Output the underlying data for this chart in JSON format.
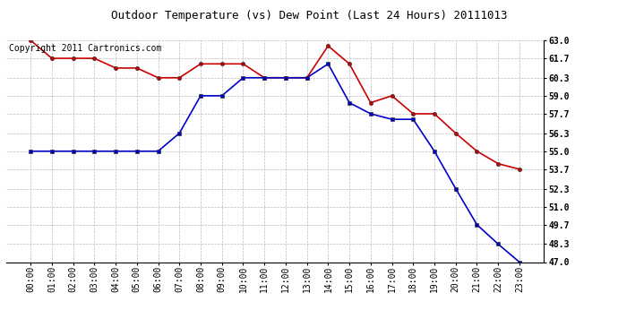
{
  "title": "Outdoor Temperature (vs) Dew Point (Last 24 Hours) 20111013",
  "copyright_text": "Copyright 2011 Cartronics.com",
  "x_labels": [
    "00:00",
    "01:00",
    "02:00",
    "03:00",
    "04:00",
    "05:00",
    "06:00",
    "07:00",
    "08:00",
    "09:00",
    "10:00",
    "11:00",
    "12:00",
    "13:00",
    "14:00",
    "15:00",
    "16:00",
    "17:00",
    "18:00",
    "19:00",
    "20:00",
    "21:00",
    "22:00",
    "23:00"
  ],
  "temp_data": [
    63.0,
    61.7,
    61.7,
    61.7,
    61.0,
    61.0,
    60.3,
    60.3,
    61.3,
    61.3,
    61.3,
    60.3,
    60.3,
    60.3,
    62.6,
    61.3,
    58.5,
    59.0,
    57.7,
    57.7,
    56.3,
    55.0,
    54.1,
    53.7
  ],
  "dew_data": [
    55.0,
    55.0,
    55.0,
    55.0,
    55.0,
    55.0,
    55.0,
    56.3,
    59.0,
    59.0,
    60.3,
    60.3,
    60.3,
    60.3,
    61.3,
    58.5,
    57.7,
    57.3,
    57.3,
    55.0,
    52.3,
    49.7,
    48.3,
    47.0
  ],
  "temp_color": "#cc0000",
  "dew_color": "#0000cc",
  "ylim_min": 47.0,
  "ylim_max": 63.0,
  "yticks": [
    47.0,
    48.3,
    49.7,
    51.0,
    52.3,
    53.7,
    55.0,
    56.3,
    57.7,
    59.0,
    60.3,
    61.7,
    63.0
  ],
  "background_color": "#ffffff",
  "grid_color": "#bbbbbb",
  "title_fontsize": 9,
  "tick_fontsize": 7,
  "copyright_fontsize": 7
}
